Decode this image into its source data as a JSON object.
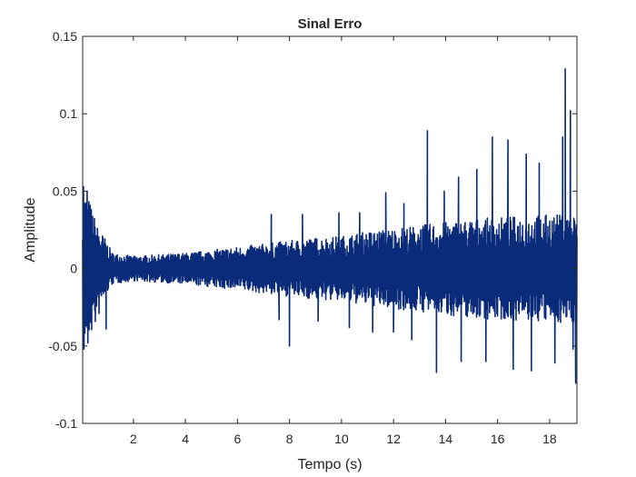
{
  "chart_data": {
    "type": "line",
    "title": "Sinal Erro",
    "xlabel": "Tempo (s)",
    "ylabel": "Amplitude",
    "xlim": [
      0.05,
      19.05
    ],
    "ylim": [
      -0.1,
      0.15
    ],
    "x_ticks": [
      2,
      4,
      6,
      8,
      10,
      12,
      14,
      16,
      18
    ],
    "x_tick_labels": [
      "2",
      "4",
      "6",
      "8",
      "10",
      "12",
      "14",
      "16",
      "18"
    ],
    "y_ticks": [
      -0.1,
      -0.05,
      0,
      0.05,
      0.1,
      0.15
    ],
    "y_tick_labels": [
      "-0.1",
      "-0.05",
      "0",
      "0.05",
      "0.1",
      "0.15"
    ],
    "grid": false,
    "series": [
      {
        "color": "#0a2a7a",
        "envelope_points": [
          {
            "t": 0.05,
            "max": 0.053,
            "min": -0.052
          },
          {
            "t": 0.3,
            "max": 0.045,
            "min": -0.045
          },
          {
            "t": 0.6,
            "max": 0.028,
            "min": -0.035
          },
          {
            "t": 0.9,
            "max": 0.02,
            "min": -0.018
          },
          {
            "t": 1.2,
            "max": 0.01,
            "min": -0.01
          },
          {
            "t": 2.0,
            "max": 0.008,
            "min": -0.008
          },
          {
            "t": 3.0,
            "max": 0.009,
            "min": -0.009
          },
          {
            "t": 4.0,
            "max": 0.01,
            "min": -0.01
          },
          {
            "t": 5.0,
            "max": 0.012,
            "min": -0.012
          },
          {
            "t": 6.0,
            "max": 0.014,
            "min": -0.014
          },
          {
            "t": 7.0,
            "max": 0.016,
            "min": -0.016
          },
          {
            "t": 8.0,
            "max": 0.018,
            "min": -0.018
          },
          {
            "t": 9.0,
            "max": 0.02,
            "min": -0.02
          },
          {
            "t": 10.0,
            "max": 0.021,
            "min": -0.021
          },
          {
            "t": 11.0,
            "max": 0.024,
            "min": -0.024
          },
          {
            "t": 12.0,
            "max": 0.026,
            "min": -0.026
          },
          {
            "t": 13.0,
            "max": 0.028,
            "min": -0.028
          },
          {
            "t": 14.0,
            "max": 0.03,
            "min": -0.03
          },
          {
            "t": 15.0,
            "max": 0.032,
            "min": -0.032
          },
          {
            "t": 16.0,
            "max": 0.033,
            "min": -0.033
          },
          {
            "t": 17.0,
            "max": 0.034,
            "min": -0.034
          },
          {
            "t": 18.0,
            "max": 0.035,
            "min": -0.035
          },
          {
            "t": 19.05,
            "max": 0.035,
            "min": -0.035
          }
        ],
        "spikes": [
          {
            "t": 0.08,
            "value": 0.053
          },
          {
            "t": 0.1,
            "value": -0.052
          },
          {
            "t": 0.22,
            "value": 0.05
          },
          {
            "t": 0.25,
            "value": -0.048
          },
          {
            "t": 0.95,
            "value": -0.039
          },
          {
            "t": 7.3,
            "value": 0.035
          },
          {
            "t": 7.6,
            "value": -0.033
          },
          {
            "t": 8.0,
            "value": -0.05
          },
          {
            "t": 8.5,
            "value": 0.035
          },
          {
            "t": 9.1,
            "value": -0.034
          },
          {
            "t": 9.9,
            "value": 0.036
          },
          {
            "t": 10.3,
            "value": -0.038
          },
          {
            "t": 10.7,
            "value": 0.036
          },
          {
            "t": 11.2,
            "value": -0.041
          },
          {
            "t": 11.7,
            "value": 0.049
          },
          {
            "t": 12.0,
            "value": -0.041
          },
          {
            "t": 12.4,
            "value": 0.042
          },
          {
            "t": 12.7,
            "value": -0.046
          },
          {
            "t": 13.3,
            "value": 0.089
          },
          {
            "t": 13.65,
            "value": -0.067
          },
          {
            "t": 13.95,
            "value": 0.05
          },
          {
            "t": 14.5,
            "value": 0.059
          },
          {
            "t": 14.6,
            "value": -0.06
          },
          {
            "t": 15.2,
            "value": 0.064
          },
          {
            "t": 15.55,
            "value": -0.06
          },
          {
            "t": 15.8,
            "value": 0.085
          },
          {
            "t": 16.4,
            "value": 0.083
          },
          {
            "t": 16.6,
            "value": -0.065
          },
          {
            "t": 17.1,
            "value": 0.074
          },
          {
            "t": 17.3,
            "value": -0.066
          },
          {
            "t": 17.6,
            "value": 0.068
          },
          {
            "t": 18.2,
            "value": -0.061
          },
          {
            "t": 18.5,
            "value": 0.085
          },
          {
            "t": 18.6,
            "value": 0.129
          },
          {
            "t": 18.8,
            "value": 0.102
          },
          {
            "t": 18.9,
            "value": -0.052
          },
          {
            "t": 19.0,
            "value": -0.074
          }
        ]
      }
    ]
  }
}
